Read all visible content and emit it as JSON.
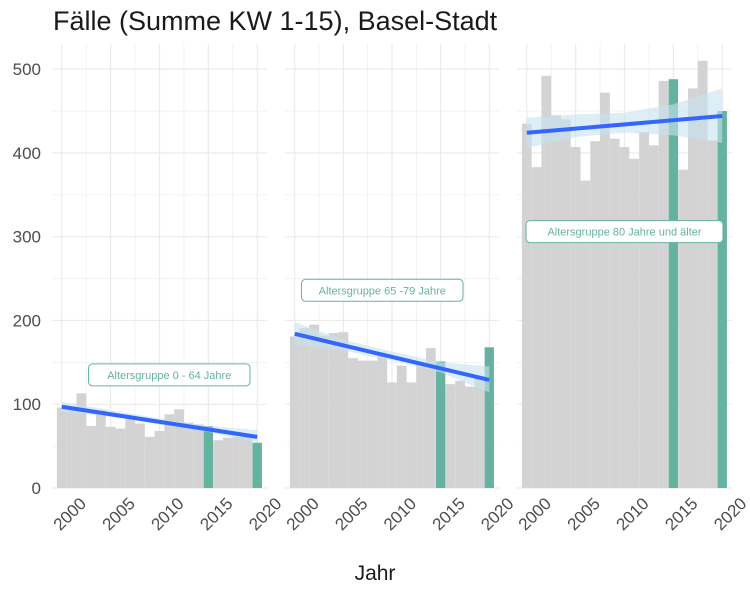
{
  "title": "Fälle (Summe KW 1-15), Basel-Stadt",
  "chart_data": {
    "type": "bar",
    "title": "Fälle (Summe KW 1-15), Basel-Stadt",
    "xlabel": "Jahr",
    "ylabel": "",
    "ylim": [
      0,
      530
    ],
    "xlim": [
      1999,
      2021
    ],
    "yticks": [
      0,
      100,
      200,
      300,
      400,
      500
    ],
    "xticks": [
      2000,
      2005,
      2010,
      2015,
      2020
    ],
    "grid": true,
    "colors": {
      "bar": "#d3d3d3",
      "highlight": "#66b2a0",
      "trend": "#3366ff",
      "band": "#c6e2f0",
      "grid": "#ebebeb",
      "annotation": "#66b2a0"
    },
    "highlight_years": [
      2015,
      2020
    ],
    "years": [
      2000,
      2001,
      2002,
      2003,
      2004,
      2005,
      2006,
      2007,
      2008,
      2009,
      2010,
      2011,
      2012,
      2013,
      2014,
      2015,
      2016,
      2017,
      2018,
      2019,
      2020
    ],
    "panels": [
      {
        "annotation": "Altersgruppe 0 - 64 Jahre",
        "label_pos": [
          2011,
          135
        ],
        "values": [
          96,
          97,
          113,
          74,
          93,
          73,
          71,
          85,
          77,
          61,
          68,
          88,
          94,
          78,
          76,
          74,
          57,
          60,
          61,
          63,
          54
        ],
        "trend": [
          97,
          61
        ],
        "band": [
          [
            2000,
            91,
            103
          ],
          [
            2005,
            85,
            93
          ],
          [
            2010,
            76,
            83
          ],
          [
            2015,
            67,
            74
          ],
          [
            2020,
            54,
            69
          ]
        ]
      },
      {
        "annotation": "Altersgruppe 65 -79 Jahre",
        "label_pos": [
          2009,
          236
        ],
        "values": [
          181,
          191,
          195,
          182,
          185,
          186,
          155,
          152,
          152,
          158,
          126,
          146,
          126,
          148,
          167,
          151,
          124,
          128,
          121,
          132,
          168
        ],
        "trend": [
          184,
          129
        ],
        "band": [
          [
            2000,
            171,
            198
          ],
          [
            2005,
            164,
            177
          ],
          [
            2010,
            152,
            163
          ],
          [
            2015,
            138,
            150
          ],
          [
            2020,
            114,
            145
          ]
        ]
      },
      {
        "annotation": "Altersgruppe 80 Jahre und älter",
        "label_pos": [
          2010,
          306
        ],
        "values": [
          435,
          383,
          492,
          445,
          440,
          407,
          367,
          414,
          472,
          417,
          407,
          393,
          425,
          409,
          486,
          488,
          380,
          477,
          510,
          415,
          450
        ],
        "trend": [
          424,
          444
        ],
        "band": [
          [
            2000,
            406,
            442
          ],
          [
            2005,
            419,
            446
          ],
          [
            2010,
            424,
            448
          ],
          [
            2015,
            421,
            458
          ],
          [
            2020,
            412,
            477
          ]
        ]
      }
    ]
  }
}
